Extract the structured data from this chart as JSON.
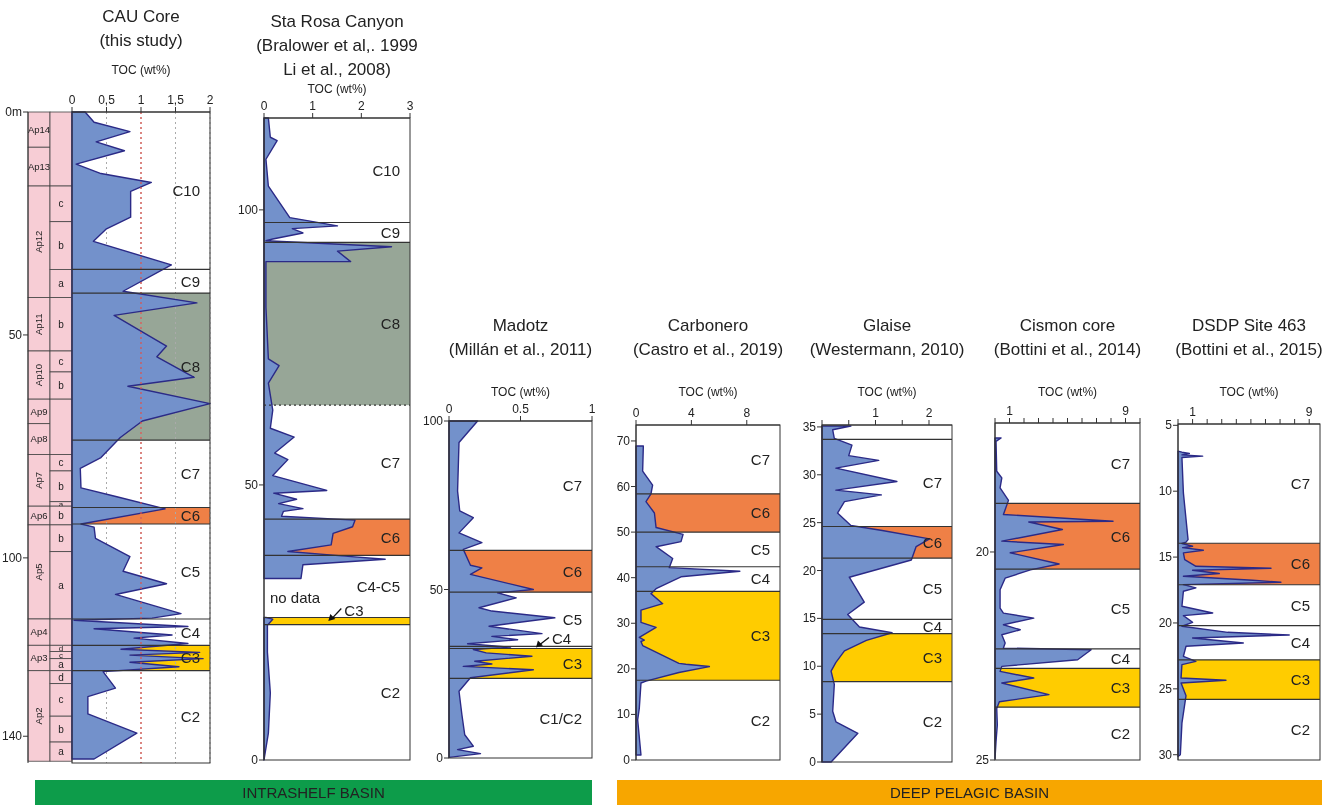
{
  "chart_data": [
    {
      "type": "bar",
      "stacked": true,
      "categories": [
        null,
        null
      ],
      "tick_labels": "y",
      "ylim": [
        146,
        0
      ],
      "yticks": [
        {
          "value": 0,
          "label": "0m"
        },
        50,
        100,
        140
      ],
      "series": [
        {
          "name": "Ap14",
          "color": "#f7cdd5",
          "values": [
            7.9,
            null
          ]
        },
        {
          "name": "Ap13",
          "color": "#f7cdd5",
          "values": [
            8.7,
            null
          ]
        },
        {
          "name": "Ap12",
          "color": "#f7cdd5",
          "values": [
            25.0,
            null
          ]
        },
        {
          "name": "Ap11",
          "color": "#f7cdd5",
          "values": [
            12.0,
            null
          ]
        },
        {
          "name": "Ap10",
          "color": "#f7cdd5",
          "values": [
            10.8,
            null
          ]
        },
        {
          "name": "Ap9",
          "color": "#f7cdd5",
          "values": [
            5.5,
            null
          ]
        },
        {
          "name": "Ap8",
          "color": "#f7cdd5",
          "values": [
            6.9,
            null
          ]
        },
        {
          "name": "Ap7",
          "color": "#f7cdd5",
          "values": [
            11.6,
            null
          ]
        },
        {
          "name": "Ap6",
          "color": "#f7cdd5",
          "values": [
            4.2,
            null
          ]
        },
        {
          "name": "Ap5",
          "color": "#f7cdd5",
          "values": [
            21.1,
            null
          ]
        },
        {
          "name": "Ap4",
          "color": "#f7cdd5",
          "values": [
            5.9,
            null
          ]
        },
        {
          "name": "Ap3",
          "color": "#f7cdd5",
          "values": [
            5.7,
            null
          ]
        },
        {
          "name": "Ap2",
          "color": "#f7cdd5",
          "values": [
            20.3,
            null
          ]
        },
        {
          "color": "#f7cdd5",
          "values": [
            null,
            16.6
          ]
        },
        {
          "name": "c",
          "color": "#f7cdd5",
          "values": [
            null,
            8.0
          ]
        },
        {
          "name": "b",
          "color": "#f7cdd5",
          "values": [
            null,
            10.7
          ]
        },
        {
          "name": "a",
          "color": "#f7cdd5",
          "values": [
            null,
            6.3
          ]
        },
        {
          "name": "b",
          "color": "#f7cdd5",
          "values": [
            null,
            12.0
          ]
        },
        {
          "name": "c",
          "color": "#f7cdd5",
          "values": [
            null,
            4.7
          ]
        },
        {
          "name": "b",
          "color": "#f7cdd5",
          "values": [
            null,
            6.1
          ]
        },
        {
          "color": "#f7cdd5",
          "values": [
            null,
            12.4
          ]
        },
        {
          "name": "c",
          "color": "#f7cdd5",
          "values": [
            null,
            3.7
          ]
        },
        {
          "name": "b",
          "color": "#f7cdd5",
          "values": [
            null,
            6.9
          ]
        },
        {
          "name": "a",
          "color": "#f7cdd5",
          "values": [
            null,
            1.0
          ]
        },
        {
          "name": "b",
          "color": "#f7cdd5",
          "values": [
            null,
            4.2
          ]
        },
        {
          "name": "b",
          "color": "#f7cdd5",
          "values": [
            null,
            6.0
          ]
        },
        {
          "name": "a",
          "color": "#f7cdd5",
          "values": [
            null,
            15.1
          ]
        },
        {
          "color": "#f7cdd5",
          "values": [
            null,
            5.9
          ]
        },
        {
          "name": "d",
          "color": "#f7cdd5",
          "values": [
            null,
            1.4
          ]
        },
        {
          "name": "c",
          "color": "#f7cdd5",
          "values": [
            null,
            1.6
          ]
        },
        {
          "name": "a",
          "color": "#f7cdd5",
          "values": [
            null,
            2.7
          ]
        },
        {
          "name": "d",
          "color": "#f7cdd5",
          "values": [
            null,
            2.9
          ]
        },
        {
          "name": "c",
          "color": "#f7cdd5",
          "values": [
            null,
            7.3
          ]
        },
        {
          "name": "b",
          "color": "#f7cdd5",
          "values": [
            null,
            5.8
          ]
        },
        {
          "name": "a",
          "color": "#f7cdd5",
          "values": [
            null,
            4.3
          ]
        }
      ]
    },
    {
      "type": "area",
      "orientation": "horizontal",
      "title": "CAU Core\n(this study)",
      "xlabel": "TOC (wt%)",
      "tick_labels": "x",
      "grid": "x",
      "xlim": [
        0,
        2
      ],
      "xticks": [
        0,
        {
          "value": 0.5,
          "label": "0,5"
        },
        1,
        {
          "value": 1.5,
          "label": "1,5"
        },
        2
      ],
      "ylim": [
        146,
        0
      ],
      "x": [
        0,
        2.3,
        4.4,
        6.7,
        8.7,
        11.7,
        13.8,
        15.8,
        17.8,
        23.6,
        26.2,
        29.0,
        34.3,
        40.2,
        42.8,
        45.6,
        52.5,
        54.9,
        59.5,
        61.5,
        65.4,
        69.3,
        73.0,
        77.5,
        79.9,
        84.3,
        86.3,
        89.0,
        92.4,
        93.1,
        95.6,
        99.7,
        103,
        105.8,
        108.2,
        112.5,
        113.5,
        114,
        115.4,
        115.9,
        117.3,
        118,
        119.2,
        120.5,
        121.2,
        121.8,
        122.6,
        123.4,
        124.4,
        125.5,
        129.2,
        131.1,
        135,
        139.3,
        145.1
      ],
      "series": [
        {
          "color": "#7391cb",
          "values": [
            0.19,
            0.32,
            0.84,
            0.35,
            0.76,
            0.06,
            0.42,
            1.15,
            0.85,
            0.85,
            0.5,
            0.31,
            1.44,
            0.74,
            1.81,
            0.61,
            1.37,
            1.23,
            1.77,
            0.81,
            2.0,
            1.02,
            0.7,
            0.42,
            0.12,
            0.13,
            0.65,
            1.35,
            0.13,
            0.32,
            0.34,
            0.84,
            0.74,
            1.37,
            0.63,
            1.58,
            1.16,
            0.03,
            1.68,
            0.32,
            1.45,
            0.9,
            1.68,
            0.71,
            1.85,
            0.84,
            1.9,
            0.84,
            1.55,
            0.45,
            0.63,
            0.23,
            0.23,
            0.94,
            0.32
          ]
        }
      ],
      "ref_lines": [
        {
          "axis": "x",
          "value": 1,
          "color": "#e0504a",
          "line_style": "dotted"
        },
        {
          "axis": "y",
          "value": 35.3
        },
        {
          "axis": "y",
          "value": 40.6
        },
        {
          "axis": "y",
          "value": 73.6
        },
        {
          "axis": "y",
          "value": 88.7
        },
        {
          "axis": "y",
          "value": 92.4
        },
        {
          "axis": "y",
          "value": 113.7
        },
        {
          "axis": "y",
          "value": 119.6
        },
        {
          "axis": "y",
          "value": 125.3
        }
      ],
      "bands": [
        {
          "axis": "y",
          "from": 40.6,
          "to": 73.6,
          "label": "C8",
          "color": "#97a697"
        },
        {
          "axis": "y",
          "from": 88.7,
          "to": 92.4,
          "label": "C6",
          "color": "#ef8046"
        },
        {
          "axis": "y",
          "from": 119.6,
          "to": 125.3,
          "label": "C3",
          "color": "#ffcc00"
        }
      ],
      "annotations": [
        "C10",
        "C9",
        "C7",
        "C5",
        "C4",
        "C2"
      ]
    },
    {
      "type": "area",
      "orientation": "horizontal",
      "title": "Sta Rosa Canyon\n(Bralower et al,. 1999\nLi et al., 2008)",
      "xlabel": "TOC (wt%)",
      "xlim": [
        0,
        3
      ],
      "xticks": [
        0,
        1,
        2,
        3
      ],
      "ylim": [
        0,
        116.7
      ],
      "yticks": [
        0,
        50,
        100
      ],
      "x": [
        116.7,
        113.2,
        112.6,
        109.2,
        104.3,
        98.6,
        97.1,
        96.6,
        95.8,
        94.7,
        94.4,
        93.3,
        92.5,
        90.6,
        90.6,
        82.3,
        72.9,
        71.7,
        68.5,
        63.6,
        60.3,
        58.7,
        55.8,
        54.6,
        51.7,
        49.0,
        48.5,
        47.4,
        46.6,
        45.7,
        45.2,
        44.3,
        43.6,
        42.4,
        41.2,
        39.1,
        37.9,
        37.1,
        36.5,
        35.5,
        33.0,
        29.5,
        25.9,
        25.6,
        24.5,
        19.6,
        12.2,
        4.9,
        0
      ],
      "series": [
        {
          "color": "#7391cb",
          "values": [
            0.09,
            0.13,
            0.27,
            0.04,
            0.09,
            0.53,
            1.51,
            0.58,
            0.8,
            0.18,
            0.04,
            2.62,
            1.51,
            1.78,
            0.04,
            0.04,
            0.09,
            0.31,
            0.09,
            0.18,
            0.13,
            0.62,
            0.22,
            0.49,
            0.18,
            1.29,
            0.2,
            0.67,
            0.3,
            0.8,
            0.4,
            0.36,
            1.87,
            1.82,
            1.42,
            1.38,
            0.49,
            1.6,
            2.49,
            0.8,
            0.76,
            null,
            0.04,
            0.18,
            0.07,
            0.07,
            0.13,
            0.09,
            0
          ]
        }
      ],
      "ref_lines": [
        {
          "axis": "y",
          "value": 24.6
        },
        {
          "axis": "y",
          "value": 25.9
        },
        {
          "axis": "y",
          "value": 37.2
        },
        {
          "axis": "y",
          "value": 43.8
        },
        {
          "axis": "y",
          "value": 64.5,
          "line_style": "dotted"
        },
        {
          "axis": "y",
          "value": 94.1
        },
        {
          "axis": "y",
          "value": 97.7
        }
      ],
      "bands": [
        {
          "axis": "y",
          "from": 24.6,
          "to": 25.9,
          "label": "C3",
          "color": "#ffcc00"
        },
        {
          "axis": "y",
          "from": 37.2,
          "to": 43.8,
          "label": "C6",
          "color": "#ef8046"
        },
        {
          "axis": "y",
          "from": 64.5,
          "to": 94.1,
          "label": "C8",
          "color": "#97a697"
        }
      ],
      "annotations": [
        "C2",
        "C4-C5",
        "C7",
        "C9",
        "C10",
        "no data"
      ]
    },
    {
      "type": "area",
      "orientation": "horizontal",
      "title": "Madotz\n(Millán et al., 2011)",
      "xlabel": "TOC (wt%)",
      "xlim": [
        0,
        1
      ],
      "xticks": [
        0,
        0.5,
        1
      ],
      "ylim": [
        0,
        100
      ],
      "yticks": [
        0,
        50,
        100
      ],
      "x": [
        100,
        93.6,
        79.2,
        73.3,
        71.3,
        66.8,
        63.9,
        61.9,
        57.2,
        56.4,
        54.5,
        50,
        49,
        47.5,
        44.6,
        43.6,
        41.6,
        39.1,
        36.9,
        36.1,
        35.1,
        33.9,
        32.9,
        32.2,
        31.2,
        30.2,
        28.7,
        27.9,
        27.2,
        26.2,
        23.8,
        19.8,
        12.9,
        6.9,
        3.5,
        2.5,
        1.3,
        0.2
      ],
      "series": [
        {
          "color": "#7391cb",
          "values": [
            0.2,
            0.07,
            0.06,
            0.075,
            0.17,
            0.07,
            0.23,
            0.1,
            0.15,
            0.23,
            0.15,
            0.59,
            0.34,
            0.47,
            0.21,
            0.3,
            0.74,
            0.28,
            0.65,
            0.3,
            0.48,
            0.13,
            0.43,
            0.17,
            0.26,
            0.58,
            0.18,
            0.3,
            0.1,
            0.59,
            0.15,
            0.07,
            0.09,
            0.11,
            0.17,
            0.06,
            0.22,
            0
          ]
        }
      ],
      "ref_lines": [
        {
          "axis": "y",
          "value": 23.6
        },
        {
          "axis": "y",
          "value": 32.5
        },
        {
          "axis": "y",
          "value": 33.1
        },
        {
          "axis": "y",
          "value": 49.2
        },
        {
          "axis": "y",
          "value": 61.6
        }
      ],
      "bands": [
        {
          "axis": "y",
          "from": 23.6,
          "to": 32.5,
          "label": "C3",
          "color": "#ffcc00"
        },
        {
          "axis": "y",
          "from": 49.2,
          "to": 61.6,
          "label": "C6",
          "color": "#ef8046"
        }
      ],
      "annotations": [
        "C1/C2",
        "C4",
        "C5",
        "C7"
      ]
    },
    {
      "type": "area",
      "orientation": "horizontal",
      "title": "Carbonero\n(Castro et al., 2019)",
      "xlabel": "TOC (wt%)",
      "xlim": [
        0,
        10.4
      ],
      "xticks": [
        0,
        4,
        8
      ],
      "ylim": [
        0,
        73.5
      ],
      "yticks": [
        0,
        10,
        20,
        30,
        40,
        50,
        60,
        70
      ],
      "x": [
        1.1,
        8.8,
        11.4,
        16.9,
        17.3,
        19.2,
        20.5,
        21.0,
        21.2,
        25.1,
        26.0,
        26.3,
        26.9,
        29.1,
        30.2,
        32.9,
        34.3,
        36.5,
        37.6,
        40.2,
        41.4,
        42.2,
        44.2,
        46.8,
        47.9,
        49.5,
        51.0,
        54.2,
        56.7,
        58.4,
        60.3,
        63.4,
        68.9
      ],
      "series": [
        {
          "color": "#7391cb",
          "values": [
            0.36,
            0.12,
            0.24,
            0.36,
            0.72,
            3.1,
            5.3,
            3.6,
            3.1,
            0.48,
            0.36,
            0.6,
            0.24,
            1.45,
            0.36,
            0.36,
            1.93,
            1.08,
            1.45,
            3.25,
            7.5,
            2.4,
            2.65,
            1.45,
            3.25,
            3.4,
            1.45,
            1.33,
            0.72,
            1.08,
            1.2,
            0.48,
            0.53
          ]
        }
      ],
      "ref_lines": [
        {
          "axis": "y",
          "value": 17.5
        },
        {
          "axis": "y",
          "value": 37.0
        },
        {
          "axis": "y",
          "value": 42.4
        },
        {
          "axis": "y",
          "value": 50.0
        },
        {
          "axis": "y",
          "value": 58.4
        }
      ],
      "bands": [
        {
          "axis": "y",
          "from": 17.5,
          "to": 37.0,
          "label": "C3",
          "color": "#ffcc00"
        },
        {
          "axis": "y",
          "from": 50.0,
          "to": 58.4,
          "label": "C6",
          "color": "#ef8046"
        }
      ],
      "annotations": [
        "C2",
        "C4",
        "C5",
        "C7"
      ]
    },
    {
      "type": "area",
      "orientation": "horizontal",
      "title": "Glaise\n(Westermann, 2010)",
      "xlabel": "TOC (wt%)",
      "xlim": [
        0,
        2.43
      ],
      "xticks": [
        {
          "value": 0,
          "label": null
        },
        {
          "value": 0.5,
          "label": null
        },
        1,
        {
          "value": 1.5,
          "label": null
        },
        2
      ],
      "ylim": [
        0,
        35.2
      ],
      "yticks": [
        0,
        5,
        10,
        15,
        20,
        25,
        30,
        35
      ],
      "x": [
        0,
        3.0,
        4.2,
        5.3,
        8.1,
        9.5,
        10.4,
        11.6,
        12.7,
        13.5,
        14.1,
        15.4,
        16.7,
        19.3,
        21.1,
        22.5,
        23.3,
        24.2,
        24.7,
        26.0,
        27.2,
        27.9,
        28.4,
        29.3,
        30.7,
        31.5,
        32.0,
        33.1,
        33.8,
        34.7,
        35.1
      ],
      "series": [
        {
          "color": "#7391cb",
          "values": [
            0.17,
            0.67,
            0.26,
            0.2,
            0.23,
            0.17,
            0.26,
            0.42,
            0.83,
            1.31,
            0.7,
            0.48,
            0.79,
            0.51,
            1.67,
            1.76,
            2.01,
            1.1,
            0.54,
            0.29,
            0.42,
            1.11,
            0.26,
            1.4,
            0.26,
            1.06,
            0.5,
            0.56,
            0.23,
            0.2,
            0.54
          ]
        }
      ],
      "ref_lines": [
        {
          "axis": "y",
          "value": 8.4
        },
        {
          "axis": "y",
          "value": 13.4
        },
        {
          "axis": "y",
          "value": 14.9
        },
        {
          "axis": "y",
          "value": 21.3
        },
        {
          "axis": "y",
          "value": 24.6
        },
        {
          "axis": "y",
          "value": 33.7
        }
      ],
      "bands": [
        {
          "axis": "y",
          "from": 8.4,
          "to": 13.4,
          "label": "C3",
          "color": "#ffcc00"
        },
        {
          "axis": "y",
          "from": 21.3,
          "to": 24.6,
          "label": "C6",
          "color": "#ef8046"
        }
      ],
      "annotations": [
        "C2",
        "C4",
        "C5",
        "C7"
      ]
    },
    {
      "type": "area",
      "orientation": "horizontal",
      "title": "Cismon core\n(Bottini et al., 2014)",
      "xlabel": "TOC (wt%)",
      "xlim": [
        0,
        10
      ],
      "xticks": [
        {
          "value": 0,
          "label": null
        },
        1,
        {
          "value": 2,
          "label": null
        },
        {
          "value": 3,
          "label": null
        },
        {
          "value": 4,
          "label": null
        },
        {
          "value": 5,
          "label": null
        },
        {
          "value": 6,
          "label": null
        },
        {
          "value": 7,
          "label": null
        },
        {
          "value": 8,
          "label": null
        },
        9,
        {
          "value": 10,
          "label": null
        }
      ],
      "ylim": [
        25,
        16.9
      ],
      "yticks": [
        20,
        25
      ],
      "x": [
        17.26,
        17.34,
        18.06,
        18.22,
        18.46,
        18.76,
        19.1,
        19.26,
        19.28,
        19.46,
        19.74,
        19.82,
        20.02,
        20.29,
        20.43,
        20.63,
        20.91,
        21.35,
        21.47,
        21.59,
        21.75,
        21.87,
        21.99,
        22.19,
        22.31,
        22.35,
        22.59,
        22.75,
        22.87,
        23.03,
        23.15,
        23.43,
        23.6,
        23.76,
        24.16,
        24.56,
        24.96
      ],
      "series": [
        {
          "color": "#7391cb",
          "values": [
            0.42,
            0.07,
            0.12,
            0.47,
            0.35,
            0.93,
            0.58,
            8.14,
            2.33,
            4.65,
            0.47,
            4.72,
            1.05,
            4.42,
            2.44,
            0.7,
            0.35,
            0.35,
            0.58,
            2.67,
            0.58,
            1.74,
            0.47,
            0.7,
            0.58,
            6.63,
            5.7,
            0.47,
            0.35,
            2.67,
            0.47,
            3.72,
            0.3,
            0.12,
            0.16,
            0.07,
            0
          ]
        }
      ],
      "ref_lines": [
        {
          "axis": "y",
          "value": 18.83
        },
        {
          "axis": "y",
          "value": 20.41
        },
        {
          "axis": "y",
          "value": 22.33
        },
        {
          "axis": "y",
          "value": 22.8
        },
        {
          "axis": "y",
          "value": 23.73
        }
      ],
      "bands": [
        {
          "axis": "y",
          "from": 18.83,
          "to": 20.41,
          "label": "C6",
          "color": "#ef8046"
        },
        {
          "axis": "y",
          "from": 22.8,
          "to": 23.73,
          "label": "C3",
          "color": "#ffcc00"
        }
      ],
      "annotations": [
        "C7",
        "C5",
        "C4",
        "C2"
      ]
    },
    {
      "type": "area",
      "orientation": "horizontal",
      "title": "DSDP Site 463\n(Bottini et al., 2015)",
      "xlabel": "TOC (wt%)",
      "xlim": [
        0,
        9.74
      ],
      "xticks": [
        {
          "value": 0,
          "label": null
        },
        1,
        {
          "value": 2,
          "label": null
        },
        {
          "value": 3,
          "label": null
        },
        {
          "value": 4,
          "label": null
        },
        {
          "value": 5,
          "label": null
        },
        {
          "value": 6,
          "label": null
        },
        {
          "value": 7,
          "label": null
        },
        {
          "value": 8,
          "label": null
        },
        9
      ],
      "ylim": [
        30.4,
        4.9
      ],
      "yticks": [
        5,
        10,
        15,
        20,
        25,
        30
      ],
      "x": [
        6.96,
        7.04,
        7.14,
        7.24,
        7.34,
        7.44,
        10.13,
        13.67,
        13.87,
        13.97,
        14.18,
        14.28,
        14.48,
        14.68,
        15.19,
        15.7,
        15.85,
        16.0,
        16.25,
        16.46,
        16.76,
        16.91,
        17.09,
        17.34,
        17.59,
        18.73,
        19.24,
        19.44,
        19.95,
        20.25,
        20.71,
        20.91,
        21.14,
        21.52,
        21.77,
        22.53,
        22.91,
        23.16,
        24.18,
        24.35,
        24.56,
        25.52,
        27.6,
        30.0,
        30.13
      ],
      "series": [
        {
          "color": "#7391cb",
          "values": [
            0,
            0.27,
            0.78,
            0.27,
            1.69,
            0.27,
            0.37,
            0.69,
            0.55,
            0.27,
            1.0,
            0.32,
            1.74,
            0.37,
            0.46,
            1.23,
            6.38,
            1.0,
            2.83,
            0.37,
            5.12,
            7.06,
            0.37,
            1.23,
            0.37,
            0.27,
            2.38,
            0.37,
            1.0,
            0.27,
            3.41,
            7.63,
            1.0,
            4.48,
            0.55,
            0.37,
            1.23,
            0.27,
            0.21,
            3.29,
            0.21,
            0.55,
            0.27,
            0.16,
            0
          ]
        }
      ],
      "ref_lines": [
        {
          "axis": "y",
          "value": 13.95
        },
        {
          "axis": "y",
          "value": 17.1
        },
        {
          "axis": "y",
          "value": 20.2
        },
        {
          "axis": "y",
          "value": 22.8
        },
        {
          "axis": "y",
          "value": 25.8
        }
      ],
      "bands": [
        {
          "axis": "y",
          "from": 13.95,
          "to": 17.1,
          "label": "C6",
          "color": "#ef8046"
        },
        {
          "axis": "y",
          "from": 22.8,
          "to": 25.8,
          "label": "C3",
          "color": "#ffcc00"
        }
      ],
      "annotations": [
        "C7",
        "C5",
        "C4",
        "C2"
      ]
    },
    {
      "type": "other",
      "annotations": [
        "INTRASHELF BASIN",
        "DEEP PELAGIC BASIN"
      ],
      "colors": [
        "#0d9c4a",
        "#f7a600"
      ]
    }
  ]
}
